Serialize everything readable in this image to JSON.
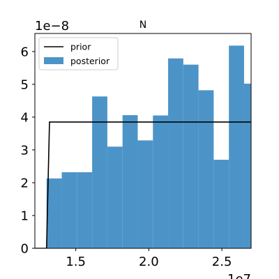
{
  "chart_data": {
    "type": "bar",
    "title": "N",
    "x_offset_label": "1e7",
    "y_offset_label": "1e−8",
    "xlim": [
      12200000,
      27000000
    ],
    "ylim": [
      0,
      6.55e-08
    ],
    "x_ticks": [
      15000000,
      20000000,
      25000000
    ],
    "x_tick_labels": [
      "1.5",
      "2.0",
      "2.5"
    ],
    "y_ticks": [
      0,
      1e-08,
      2e-08,
      3e-08,
      4e-08,
      5e-08,
      6e-08
    ],
    "y_tick_labels": [
      "0",
      "1",
      "2",
      "3",
      "4",
      "5",
      "6"
    ],
    "legend": {
      "location": "upper left",
      "entries": [
        "prior",
        "posterior"
      ]
    },
    "series": [
      {
        "name": "posterior",
        "kind": "histogram",
        "color": "#4c94c8",
        "bin_edges": [
          13000000,
          14040000,
          15080000,
          16120000,
          17160000,
          18200000,
          19240000,
          20280000,
          21320000,
          22360000,
          23400000,
          24440000,
          25480000,
          26520000,
          27560000
        ],
        "values": [
          2.13e-08,
          2.32e-08,
          2.32e-08,
          4.63e-08,
          3.1e-08,
          4.06e-08,
          3.29e-08,
          4.05e-08,
          5.79e-08,
          5.6e-08,
          4.82e-08,
          2.7e-08,
          6.18e-08,
          5.02e-08
        ]
      },
      {
        "name": "prior",
        "kind": "step",
        "color": "#000000",
        "x": [
          12200000,
          13000000,
          13200000,
          27000000
        ],
        "y": [
          0,
          0,
          3.85e-08,
          3.85e-08
        ]
      }
    ]
  }
}
